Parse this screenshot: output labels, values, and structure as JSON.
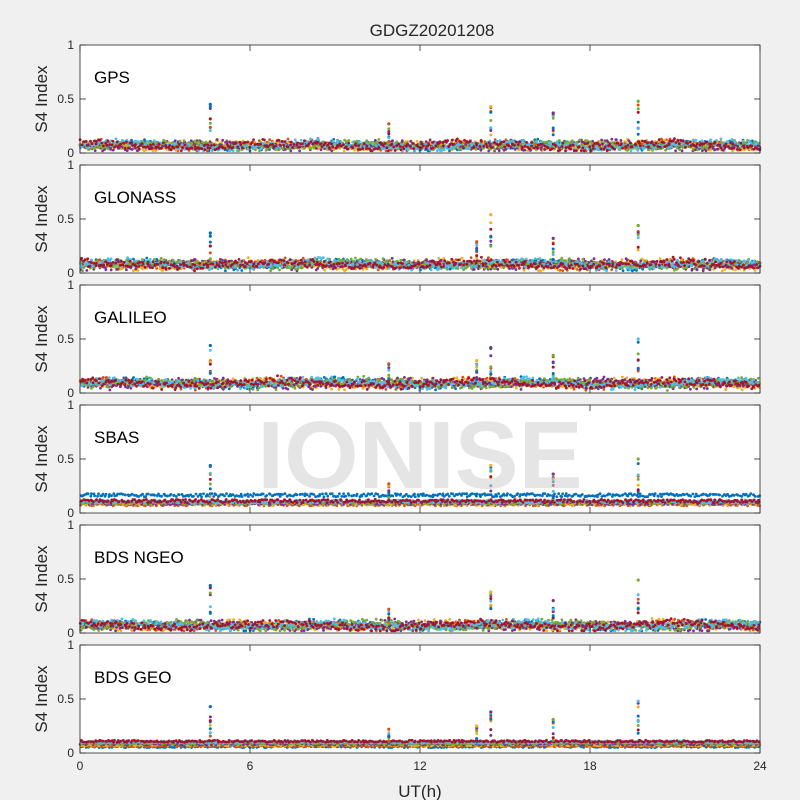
{
  "figure": {
    "title": "GDGZ20201208",
    "watermark": "IONISE",
    "background": "#f0f0f0",
    "axes_background": "#ffffff"
  },
  "chart_data": [
    {
      "type": "scatter",
      "panel_label": "GPS",
      "ylabel": "S4 Index",
      "xlabel": "",
      "xlim": [
        0,
        24
      ],
      "ylim": [
        0,
        1
      ],
      "yticks": [
        0,
        0.5,
        1
      ],
      "ytick_labels": [
        "0",
        "0.5",
        "1"
      ],
      "xticks": [
        0,
        6,
        12,
        18,
        24
      ],
      "xtick_labels": [],
      "baseline": 0.07,
      "spike_times": [
        4.6,
        10.9,
        14.5,
        16.7,
        19.7
      ],
      "spike_peaks": [
        0.45,
        0.27,
        0.43,
        0.37,
        0.48
      ]
    },
    {
      "type": "scatter",
      "panel_label": "GLONASS",
      "ylabel": "S4 Index",
      "xlabel": "",
      "xlim": [
        0,
        24
      ],
      "ylim": [
        0,
        1
      ],
      "yticks": [
        0,
        0.5,
        1
      ],
      "ytick_labels": [
        "0",
        "0.5",
        "1"
      ],
      "xticks": [
        0,
        6,
        12,
        18,
        24
      ],
      "xtick_labels": [],
      "baseline": 0.08,
      "spike_times": [
        4.6,
        14.0,
        14.5,
        16.7,
        19.7
      ],
      "spike_peaks": [
        0.37,
        0.29,
        0.54,
        0.32,
        0.44
      ]
    },
    {
      "type": "scatter",
      "panel_label": "GALILEO",
      "ylabel": "S4 Index",
      "xlabel": "",
      "xlim": [
        0,
        24
      ],
      "ylim": [
        0,
        1
      ],
      "yticks": [
        0,
        0.5,
        1
      ],
      "ytick_labels": [
        "0",
        "0.5",
        "1"
      ],
      "xticks": [
        0,
        6,
        12,
        18,
        24
      ],
      "xtick_labels": [],
      "baseline": 0.09,
      "spike_times": [
        4.6,
        10.9,
        14.0,
        14.5,
        16.7,
        19.7
      ],
      "spike_peaks": [
        0.44,
        0.27,
        0.3,
        0.42,
        0.35,
        0.5
      ]
    },
    {
      "type": "scatter",
      "panel_label": "SBAS",
      "ylabel": "S4 Index",
      "xlabel": "",
      "xlim": [
        0,
        24
      ],
      "ylim": [
        0,
        1
      ],
      "yticks": [
        0,
        0.5,
        1
      ],
      "ytick_labels": [
        "0",
        "0.5",
        "1"
      ],
      "xticks": [
        0,
        6,
        12,
        18,
        24
      ],
      "xtick_labels": [],
      "baseline": 0.08,
      "spike_times": [
        4.6,
        10.9,
        14.5,
        16.7,
        19.7
      ],
      "spike_peaks": [
        0.44,
        0.27,
        0.44,
        0.36,
        0.5
      ]
    },
    {
      "type": "scatter",
      "panel_label": "BDS NGEO",
      "ylabel": "S4 Index",
      "xlabel": "",
      "xlim": [
        0,
        24
      ],
      "ylim": [
        0,
        1
      ],
      "yticks": [
        0,
        0.5,
        1
      ],
      "ytick_labels": [
        "0",
        "0.5",
        "1"
      ],
      "xticks": [
        0,
        6,
        12,
        18,
        24
      ],
      "xtick_labels": [],
      "baseline": 0.07,
      "spike_times": [
        4.6,
        10.9,
        14.5,
        16.7,
        19.7
      ],
      "spike_peaks": [
        0.44,
        0.22,
        0.38,
        0.3,
        0.49
      ]
    },
    {
      "type": "scatter",
      "panel_label": "BDS GEO",
      "ylabel": "S4 Index",
      "xlabel": "UT(h)",
      "xlim": [
        0,
        24
      ],
      "ylim": [
        0,
        1
      ],
      "yticks": [
        0,
        0.5,
        1
      ],
      "ytick_labels": [
        "0",
        "0.5",
        "1"
      ],
      "xticks": [
        0,
        6,
        12,
        18,
        24
      ],
      "xtick_labels": [
        "0",
        "6",
        "12",
        "18",
        "24"
      ],
      "baseline": 0.08,
      "spike_times": [
        4.6,
        10.9,
        14.0,
        14.5,
        16.7,
        19.7
      ],
      "spike_peaks": [
        0.43,
        0.22,
        0.25,
        0.38,
        0.31,
        0.48
      ]
    }
  ],
  "series_colors": [
    "#0072BD",
    "#D95319",
    "#EDB120",
    "#7E2F8E",
    "#77AC30",
    "#4DBEEE",
    "#A2142F"
  ]
}
